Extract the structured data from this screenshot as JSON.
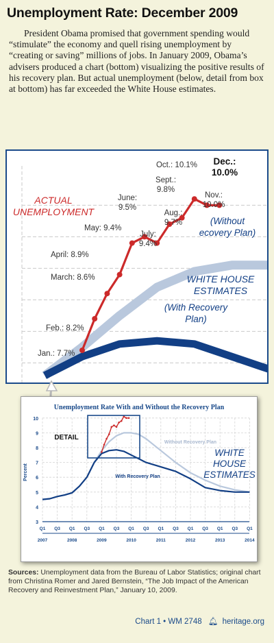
{
  "header": {
    "title": "Unemployment Rate: December 2009",
    "intro": "President Obama promised that government spending would “stimulate” the economy and quell rising unemployment by “creating or saving” millions of jobs. In January 2009, Obama’s advisers produced a chart (bottom) visualizing the positive results of his recovery plan. But actual unemployment (below, detail from box at bottom) has far exceeded the White House estimates."
  },
  "colors": {
    "actual": "#cc2a2a",
    "with_plan": "#123f85",
    "without_plan": "#b9c8dd",
    "accent": "#1a4a8a",
    "background": "#f4f3dc"
  },
  "chart_data": [
    {
      "type": "line",
      "title": "",
      "labels": {
        "actual": "ACTUAL UNEMPLOYMENT",
        "white_house": "WHITE HOUSE ESTIMATES",
        "without": "(Without Recovery Plan)",
        "with": "(With Recovery Plan)"
      },
      "series": [
        {
          "name": "ACTUAL UNEMPLOYMENT",
          "x": [
            "2009-01",
            "2009-02",
            "2009-03",
            "2009-04",
            "2009-05",
            "2009-06",
            "2009-07",
            "2009-08",
            "2009-09",
            "2009-10",
            "2009-11",
            "2009-12"
          ],
          "values": [
            7.7,
            8.2,
            8.6,
            8.9,
            9.4,
            9.5,
            9.4,
            9.7,
            9.8,
            10.1,
            10.0,
            10.0
          ],
          "point_labels": [
            "Jan.: 7.7%",
            "Feb.: 8.2%",
            "March: 8.6%",
            "April: 8.9%",
            "May: 9.4%",
            "June: 9.5%",
            "July: 9.4%",
            "Aug.: 9.7%",
            "Sept.: 9.8%",
            "Oct.: 10.1%",
            "Nov.: 10.0%",
            "Dec.: 10.0%"
          ]
        },
        {
          "name": "(Without Recovery Plan)",
          "x": [
            "2008-10",
            "2009-01",
            "2009-04",
            "2009-07",
            "2009-10",
            "2010-01",
            "2010-04"
          ],
          "values": [
            7.3,
            7.75,
            8.25,
            8.7,
            8.95,
            9.05,
            9.05
          ]
        },
        {
          "name": "(With Recovery Plan)",
          "x": [
            "2008-10",
            "2009-01",
            "2009-04",
            "2009-07",
            "2009-10",
            "2010-01",
            "2010-04"
          ],
          "values": [
            7.3,
            7.6,
            7.8,
            7.85,
            7.8,
            7.6,
            7.4
          ]
        }
      ]
    },
    {
      "type": "line",
      "title": "Unemployment Rate With and Without the Recovery Plan",
      "ylabel": "Percent",
      "ylim": [
        3,
        10
      ],
      "yticks": [
        "3",
        "4",
        "5",
        "6",
        "7",
        "8",
        "9",
        "10"
      ],
      "x_quarter_labels": [
        "Q1",
        "Q3",
        "Q1",
        "Q3",
        "Q1",
        "Q3",
        "Q1",
        "Q3",
        "Q1",
        "Q3",
        "Q1",
        "Q3",
        "Q1",
        "Q3",
        "Q1"
      ],
      "x_year_labels": [
        "2007",
        "2008",
        "2009",
        "2010",
        "2011",
        "2012",
        "2013",
        "2014"
      ],
      "detail_label": "DETAIL",
      "white_house_label": "WHITE HOUSE ESTIMATES",
      "series": [
        {
          "name": "Without Recovery Plan",
          "x": [
            2007.0,
            2007.25,
            2007.5,
            2007.75,
            2008.0,
            2008.25,
            2008.5,
            2008.75,
            2009.0,
            2009.25,
            2009.5,
            2009.75,
            2010.0,
            2010.25,
            2010.5,
            2010.75,
            2011.0,
            2011.5,
            2012.0,
            2012.5,
            2013.0,
            2013.5,
            2014.0
          ],
          "values": [
            4.5,
            4.55,
            4.7,
            4.8,
            4.95,
            5.4,
            6.0,
            7.0,
            7.8,
            8.4,
            8.8,
            9.0,
            9.0,
            8.9,
            8.6,
            8.2,
            7.8,
            7.0,
            6.3,
            5.8,
            5.4,
            5.15,
            5.0
          ]
        },
        {
          "name": "With Recovery Plan",
          "x": [
            2007.0,
            2007.25,
            2007.5,
            2007.75,
            2008.0,
            2008.25,
            2008.5,
            2008.75,
            2009.0,
            2009.25,
            2009.5,
            2009.75,
            2010.0,
            2010.25,
            2010.5,
            2010.75,
            2011.0,
            2011.5,
            2012.0,
            2012.5,
            2013.0,
            2013.5,
            2014.0
          ],
          "values": [
            4.5,
            4.55,
            4.7,
            4.8,
            4.95,
            5.4,
            6.0,
            7.0,
            7.6,
            7.8,
            7.85,
            7.75,
            7.5,
            7.25,
            7.0,
            6.85,
            6.7,
            6.4,
            5.9,
            5.3,
            5.1,
            5.0,
            5.0
          ]
        },
        {
          "name": "Actual",
          "x": [
            2009.0,
            2009.083,
            2009.167,
            2009.25,
            2009.333,
            2009.417,
            2009.5,
            2009.583,
            2009.667,
            2009.75,
            2009.833,
            2009.917
          ],
          "values": [
            7.7,
            8.2,
            8.6,
            8.9,
            9.4,
            9.5,
            9.4,
            9.7,
            9.8,
            10.1,
            10.0,
            10.0
          ]
        }
      ]
    }
  ],
  "sources": {
    "label": "Sources:",
    "text": " Unemployment data from the Bureau of Labor Statistics; original chart from Christina Romer and Jared Bernstein, “The Job Impact of the American Recovery and Reinvestment Plan,” January 10, 2009."
  },
  "footer": {
    "chart_id": "Chart 1 • WM 2748",
    "site": "heritage.org"
  }
}
